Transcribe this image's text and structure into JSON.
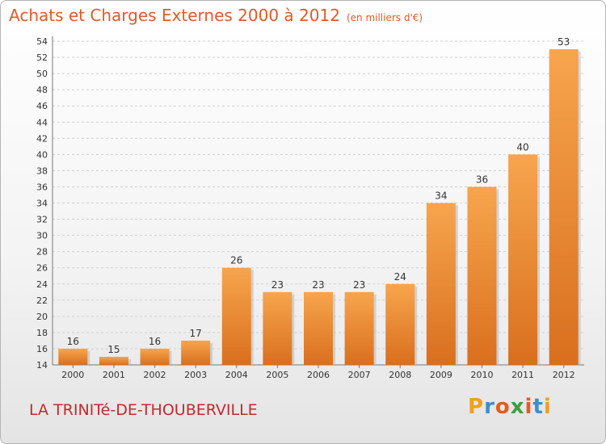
{
  "title": "Achats et Charges Externes 2000 à 2012",
  "unit": "(en milliers d'€)",
  "town": "LA TRINITé-DE-THOUBERVILLE",
  "logo": {
    "letters": [
      "P",
      "r",
      "o",
      "x",
      "i",
      "t",
      "i"
    ],
    "colors": [
      "#f0a020",
      "#3a8fd0",
      "#e85a20",
      "#3aa040",
      "#e85a20",
      "#3a8fd0",
      "#f0a020"
    ]
  },
  "colors": {
    "bar_light": "#f7a54e",
    "bar_dark": "#d96f1e",
    "axis": "#777777",
    "grid": "#cfcfcf"
  },
  "chart_data": {
    "type": "bar",
    "title": "Achats et Charges Externes 2000 à 2012",
    "xlabel": "",
    "ylabel": "",
    "ylim": [
      14,
      54
    ],
    "yticks": [
      14,
      16,
      18,
      20,
      22,
      24,
      26,
      28,
      30,
      32,
      34,
      36,
      38,
      40,
      42,
      44,
      46,
      48,
      50,
      52,
      54
    ],
    "categories": [
      "2000",
      "2001",
      "2002",
      "2003",
      "2004",
      "2005",
      "2006",
      "2007",
      "2008",
      "2009",
      "2010",
      "2011",
      "2012"
    ],
    "values": [
      16,
      15,
      16,
      17,
      26,
      23,
      23,
      23,
      24,
      34,
      36,
      40,
      53
    ],
    "grid": true
  }
}
